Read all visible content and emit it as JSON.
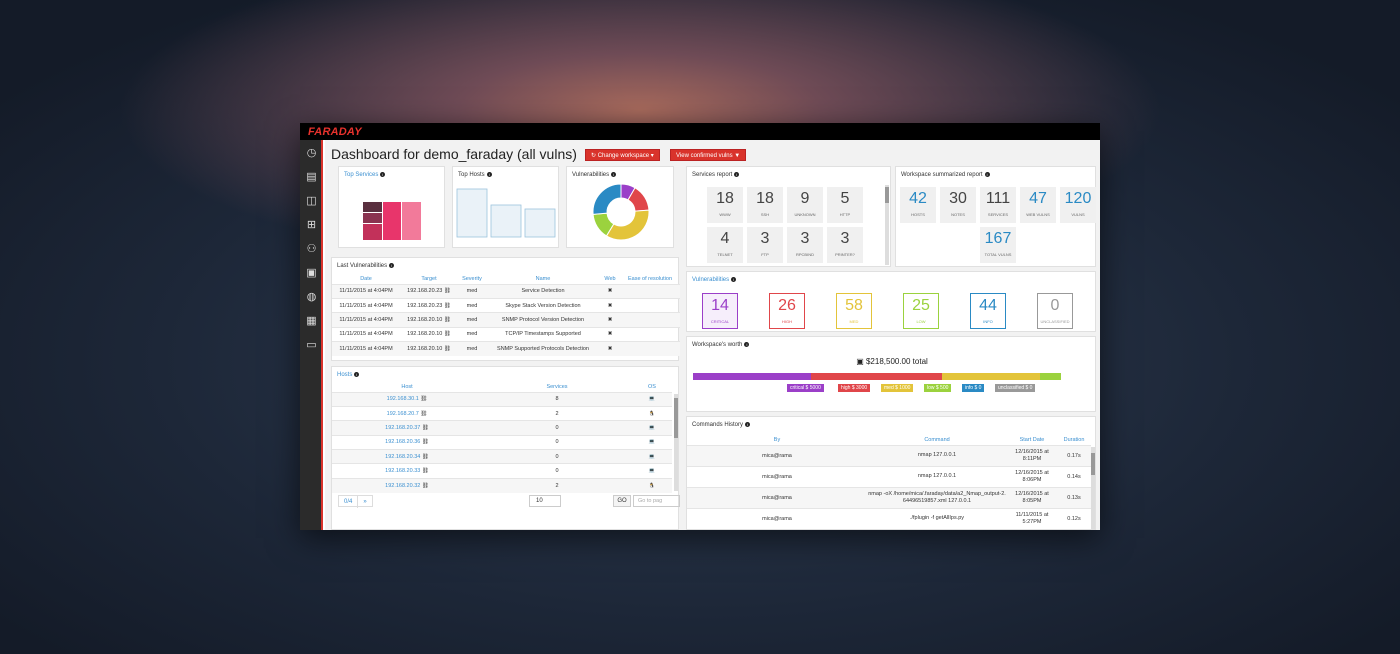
{
  "app": {
    "logo": "FARADAY"
  },
  "header": {
    "title": "Dashboard for demo_faraday (all vulns)",
    "change_workspace": "Change workspace",
    "view_confirmed": "View confirmed vulns"
  },
  "top_services": {
    "title": "Top Services"
  },
  "top_hosts": {
    "title": "Top Hosts"
  },
  "vuln_chart": {
    "title": "Vulnerabilities",
    "colors": [
      "#9b3fc8",
      "#e0464a",
      "#e3c43a",
      "#9bd23e",
      "#2a8ac4"
    ]
  },
  "services_report": {
    "title": "Services report",
    "tiles": [
      {
        "num": "18",
        "lbl": "WWW"
      },
      {
        "num": "18",
        "lbl": "SSH"
      },
      {
        "num": "9",
        "lbl": "UNKNOWN"
      },
      {
        "num": "5",
        "lbl": "HTTP"
      },
      {
        "num": "4",
        "lbl": "TELNET"
      },
      {
        "num": "3",
        "lbl": "FTP"
      },
      {
        "num": "3",
        "lbl": "RPCBIND"
      },
      {
        "num": "3",
        "lbl": "PRINTER?"
      }
    ]
  },
  "workspace_summary": {
    "title": "Workspace summarized report",
    "tiles": [
      {
        "num": "42",
        "lbl": "HOSTS"
      },
      {
        "num": "30",
        "lbl": "NOTES"
      },
      {
        "num": "111",
        "lbl": "SERVICES"
      },
      {
        "num": "47",
        "lbl": "WEB VULNS"
      },
      {
        "num": "120",
        "lbl": "VULNS"
      },
      {
        "num": "167",
        "lbl": "TOTAL VULNS"
      }
    ]
  },
  "vulnerabilities": {
    "title": "Vulnerabilities",
    "items": [
      {
        "num": "14",
        "lbl": "CRITICAL",
        "color": "#9b3fc8",
        "bg": "#f6eefb"
      },
      {
        "num": "26",
        "lbl": "HIGH",
        "color": "#e0464a",
        "bg": "#fff"
      },
      {
        "num": "58",
        "lbl": "MED",
        "color": "#e3c43a",
        "bg": "#fff"
      },
      {
        "num": "25",
        "lbl": "LOW",
        "color": "#9bd23e",
        "bg": "#fff"
      },
      {
        "num": "44",
        "lbl": "INFO",
        "color": "#2a8ac4",
        "bg": "#fff"
      },
      {
        "num": "0",
        "lbl": "UNCLASSIFIED",
        "color": "#999999",
        "bg": "#fff"
      }
    ]
  },
  "worth": {
    "title": "Workspace's worth",
    "total": "$218,500.00 total",
    "chips": [
      {
        "label": "critical $ 5000",
        "color": "#9b3fc8"
      },
      {
        "label": "high $ 3000",
        "color": "#e0464a"
      },
      {
        "label": "med $ 1000",
        "color": "#e3c43a"
      },
      {
        "label": "low $ 500",
        "color": "#9bd23e"
      },
      {
        "label": "info $ 0",
        "color": "#2a8ac4"
      },
      {
        "label": "unclassified $ 0",
        "color": "#999999"
      }
    ]
  },
  "last_vulns": {
    "title": "Last Vulnerabilities",
    "headers": [
      "Date",
      "Target",
      "Severity",
      "Name",
      "Web",
      "Ease of resolution"
    ],
    "rows": [
      {
        "date": "11/11/2015 at 4:04PM",
        "target": "192.168.20.23",
        "sev": "med",
        "name": "Service Detection",
        "web": "✖"
      },
      {
        "date": "11/11/2015 at 4:04PM",
        "target": "192.168.20.23",
        "sev": "med",
        "name": "Skype Stack Version Detection",
        "web": "✖"
      },
      {
        "date": "11/11/2015 at 4:04PM",
        "target": "192.168.20.10",
        "sev": "med",
        "name": "SNMP Protocol Version Detection",
        "web": "✖"
      },
      {
        "date": "11/11/2015 at 4:04PM",
        "target": "192.168.20.10",
        "sev": "med",
        "name": "TCP/IP Timestamps Supported",
        "web": "✖"
      },
      {
        "date": "11/11/2015 at 4:04PM",
        "target": "192.168.20.10",
        "sev": "med",
        "name": "SNMP Supported Protocols Detection",
        "web": "✖"
      }
    ]
  },
  "hosts": {
    "title": "Hosts",
    "headers": [
      "Host",
      "Services",
      "OS"
    ],
    "rows": [
      {
        "host": "192.168.30.1",
        "services": "8",
        "os": "💻"
      },
      {
        "host": "192.168.20.7",
        "services": "2",
        "os": "🐧"
      },
      {
        "host": "192.168.20.37",
        "services": "0",
        "os": "💻"
      },
      {
        "host": "192.168.20.36",
        "services": "0",
        "os": "💻"
      },
      {
        "host": "192.168.20.34",
        "services": "0",
        "os": "💻"
      },
      {
        "host": "192.168.20.33",
        "services": "0",
        "os": "💻"
      },
      {
        "host": "192.168.20.32",
        "services": "2",
        "os": "🐧"
      }
    ],
    "pager": "0/4",
    "next": "»",
    "page_size": "10",
    "go": "GO",
    "goto_placeholder": "Go to pag"
  },
  "commands": {
    "title": "Commands History",
    "headers": [
      "By",
      "Command",
      "Start Date",
      "Duration"
    ],
    "rows": [
      {
        "by": "mica@rama",
        "cmd": "nmap 127.0.0.1",
        "date": "12/16/2015 at 8:11PM",
        "dur": "0.17s"
      },
      {
        "by": "mica@rama",
        "cmd": "nmap 127.0.0.1",
        "date": "12/16/2015 at 8:06PM",
        "dur": "0.14s"
      },
      {
        "by": "mica@rama",
        "cmd": "nmap -oX /home/mica/.faraday/data/a2_Nmap_output-2.64496519857.xml 127.0.0.1",
        "date": "12/16/2015 at 8:05PM",
        "dur": "0.13s"
      },
      {
        "by": "mica@rama",
        "cmd": "./fplugin -f getAllIps.py",
        "date": "11/11/2015 at 5:27PM",
        "dur": "0.12s"
      }
    ]
  }
}
